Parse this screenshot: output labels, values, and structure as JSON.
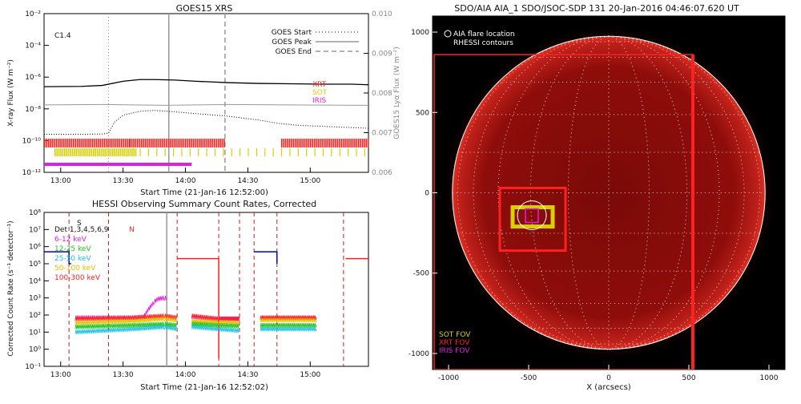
{
  "colors": {
    "xrt": "#ff2020",
    "sot": "#d8d000",
    "iris": "#e020e0",
    "blue": "#0000cc",
    "goes_gray": "#999999",
    "sun_bg": "#000000",
    "disk_red": "#b01010"
  },
  "chart_data": [
    {
      "type": "line",
      "title": "GOES15 XRS",
      "annotation": "C1.4",
      "xlabel": "Start Time (21-Jan-16 12:52:00)",
      "ylabel": "X-ray Flux (W m⁻²)",
      "y2label": "GOES15 Lyα Flux (W m⁻²)",
      "y_log": true,
      "ylim": [
        1e-12,
        0.01
      ],
      "y_ticks": [
        "10⁻¹²",
        "10⁻¹⁰",
        "10⁻⁸",
        "10⁻⁶",
        "10⁻⁴",
        "10⁻²"
      ],
      "y2lim": [
        0.006,
        0.01
      ],
      "y2_ticks": [
        "0.006",
        "0.007",
        "0.008",
        "0.009",
        "0.010"
      ],
      "x_ticks": [
        "13:00",
        "13:30",
        "14:00",
        "14:30",
        "15:00"
      ],
      "xlim_min": [
        772,
        928
      ],
      "legend": [
        "GOES Start",
        "GOES Peak",
        "GOES End"
      ],
      "event_lines_min": {
        "start": 803,
        "peak": 832,
        "end": 859
      },
      "instrument_labels": [
        "XRT",
        "SOT",
        "IRIS"
      ],
      "series": [
        {
          "key": "long",
          "color": "#000000",
          "x": [
            772,
            790,
            800,
            810,
            818,
            825,
            835,
            845,
            860,
            875,
            890,
            905,
            920,
            928
          ],
          "y": [
            2.5e-07,
            2.6e-07,
            3e-07,
            5.5e-07,
            7e-07,
            7e-07,
            6.5e-07,
            5.5e-07,
            4.5e-07,
            4e-07,
            3.8e-07,
            3.6e-07,
            3.6e-07,
            3.3e-07
          ]
        },
        {
          "key": "short",
          "color": "#000000",
          "dotted": true,
          "x": [
            772,
            790,
            800,
            803,
            806,
            810,
            818,
            825,
            835,
            845,
            860,
            875,
            885,
            895,
            905,
            915,
            928
          ],
          "y": [
            2.5e-10,
            2.5e-10,
            2.6e-10,
            3e-10,
            1.5e-09,
            4e-09,
            7e-09,
            8e-09,
            6.5e-09,
            5e-09,
            3.5e-09,
            2e-09,
            1.2e-09,
            9e-10,
            8e-10,
            7e-10,
            6e-10
          ]
        },
        {
          "key": "lya",
          "color": "#999999",
          "x": [
            772,
            800,
            830,
            860,
            890,
            928
          ],
          "y": [
            0.0077,
            0.00771,
            0.00769,
            0.00771,
            0.0077,
            0.00769
          ]
        }
      ],
      "coverage": {
        "xrt": [
          [
            772,
            813
          ],
          [
            813,
            859
          ],
          [
            886,
            928
          ]
        ],
        "sot": [
          [
            777,
            816
          ]
        ],
        "iris": [
          [
            772,
            843
          ]
        ]
      }
    },
    {
      "type": "line",
      "title": "HESSI Observing Summary Count Rates, Corrected",
      "xlabel": "Start Time (21-Jan-16 12:52:02)",
      "ylabel": "Corrected Count Rate (s⁻¹ detector⁻¹)",
      "y_log": true,
      "ylim": [
        0.1,
        100000000.0
      ],
      "y_ticks": [
        "10⁻¹",
        "10⁰",
        "10¹",
        "10²",
        "10³",
        "10⁴",
        "10⁵",
        "10⁶",
        "10⁷",
        "10⁸"
      ],
      "x_ticks": [
        "13:00",
        "13:30",
        "14:00",
        "14:30",
        "15:00"
      ],
      "xlim_min": [
        772,
        928
      ],
      "detectors_label": "Det 1,3,4,5,6,9",
      "markers": [
        "S",
        "N"
      ],
      "legend": [
        {
          "label": "6-12 keV",
          "color": "#e020e0"
        },
        {
          "label": "12-25 keV",
          "color": "#20c020"
        },
        {
          "label": "25-50 keV",
          "color": "#20c0e0"
        },
        {
          "label": "50-100 keV",
          "color": "#e0c000"
        },
        {
          "label": "100-300 keV",
          "color": "#ff2020"
        }
      ],
      "bands": [
        {
          "color": "#e020e0",
          "segments": [
            [
              [
                787,
                70
              ],
              [
                815,
                70
              ],
              [
                820,
                80
              ],
              [
                822,
                200
              ],
              [
                825,
                600
              ],
              [
                827,
                900
              ],
              [
                830,
                1000
              ],
              [
                831,
                1000
              ]
            ],
            [
              [
                843,
                80
              ],
              [
                855,
                60
              ],
              [
                866,
                60
              ]
            ],
            [
              [
                876,
                70
              ],
              [
                903,
                70
              ]
            ]
          ]
        },
        {
          "color": "#ff2020",
          "segments": [
            [
              [
                787,
                60
              ],
              [
                815,
                70
              ],
              [
                830,
                90
              ],
              [
                836,
                70
              ]
            ],
            [
              [
                843,
                90
              ],
              [
                856,
                60
              ],
              [
                866,
                60
              ]
            ],
            [
              [
                876,
                70
              ],
              [
                903,
                70
              ]
            ]
          ]
        },
        {
          "color": "#e0c000",
          "segments": [
            [
              [
                787,
                35
              ],
              [
                815,
                45
              ],
              [
                830,
                60
              ],
              [
                836,
                50
              ]
            ],
            [
              [
                843,
                45
              ],
              [
                856,
                40
              ],
              [
                866,
                35
              ]
            ],
            [
              [
                876,
                50
              ],
              [
                903,
                50
              ]
            ]
          ]
        },
        {
          "color": "#20c020",
          "segments": [
            [
              [
                787,
                20
              ],
              [
                815,
                25
              ],
              [
                830,
                30
              ],
              [
                836,
                25
              ]
            ],
            [
              [
                843,
                30
              ],
              [
                856,
                25
              ],
              [
                866,
                22
              ]
            ],
            [
              [
                876,
                25
              ],
              [
                903,
                25
              ]
            ]
          ]
        },
        {
          "color": "#20c0e0",
          "segments": [
            [
              [
                787,
                10
              ],
              [
                815,
                15
              ],
              [
                830,
                20
              ],
              [
                836,
                15
              ]
            ],
            [
              [
                843,
                20
              ],
              [
                856,
                15
              ],
              [
                866,
                12
              ]
            ],
            [
              [
                876,
                15
              ],
              [
                903,
                15
              ]
            ]
          ]
        }
      ],
      "blue_line": [
        [
          772,
          500000
        ],
        [
          784,
          500000
        ],
        [
          784,
          100000.0
        ],
        [
          785,
          100000.0
        ]
      ],
      "blue_line2": [
        [
          873,
          500000
        ],
        [
          884,
          500000
        ],
        [
          884,
          100000.0
        ]
      ],
      "red_line": [
        [
          836,
          200000.0
        ],
        [
          856,
          200000.0
        ],
        [
          856,
          0.3
        ]
      ],
      "red_line2": [
        [
          917,
          200000.0
        ],
        [
          928,
          200000.0
        ]
      ],
      "flag_lines_min": [
        784,
        803,
        831,
        836,
        856,
        866,
        873,
        884,
        916
      ]
    },
    {
      "type": "scatter",
      "title": "SDO/AIA AIA_1 SDO/JSOC-SDP 131 20-Jan-2016 04:46:07.620 UT",
      "xlabel": "X (arcsecs)",
      "ylabel": "",
      "xlim": [
        -1100,
        1100
      ],
      "ylim": [
        -1100,
        1100
      ],
      "x_ticks": [
        "-1000",
        "-500",
        "0",
        "500",
        "1000"
      ],
      "y_ticks": [
        "-1000",
        "-500",
        "0",
        "500",
        "1000"
      ],
      "legend_top": [
        "AIA flare location",
        "RHESSI contours"
      ],
      "legend_bottom": [
        {
          "label": "SOT FOV",
          "color": "#d8d000"
        },
        {
          "label": "XRT FOV",
          "color": "#ff2020"
        },
        {
          "label": "IRIS FOV",
          "color": "#e020e0"
        }
      ],
      "solar_radius": 976,
      "flare_xy": [
        -480,
        -140
      ],
      "xrt_fov": {
        "x": [
          -1090,
          525
        ],
        "y": [
          -1100,
          860
        ]
      },
      "xrt_small": {
        "x": [
          -680,
          -270
        ],
        "y": [
          -360,
          30
        ]
      },
      "sot_fov": {
        "x": [
          -600,
          -350
        ],
        "y": [
          -210,
          -90
        ]
      },
      "iris_fov": {
        "x": [
          -520,
          -440
        ],
        "y": [
          -185,
          -100
        ]
      }
    }
  ]
}
